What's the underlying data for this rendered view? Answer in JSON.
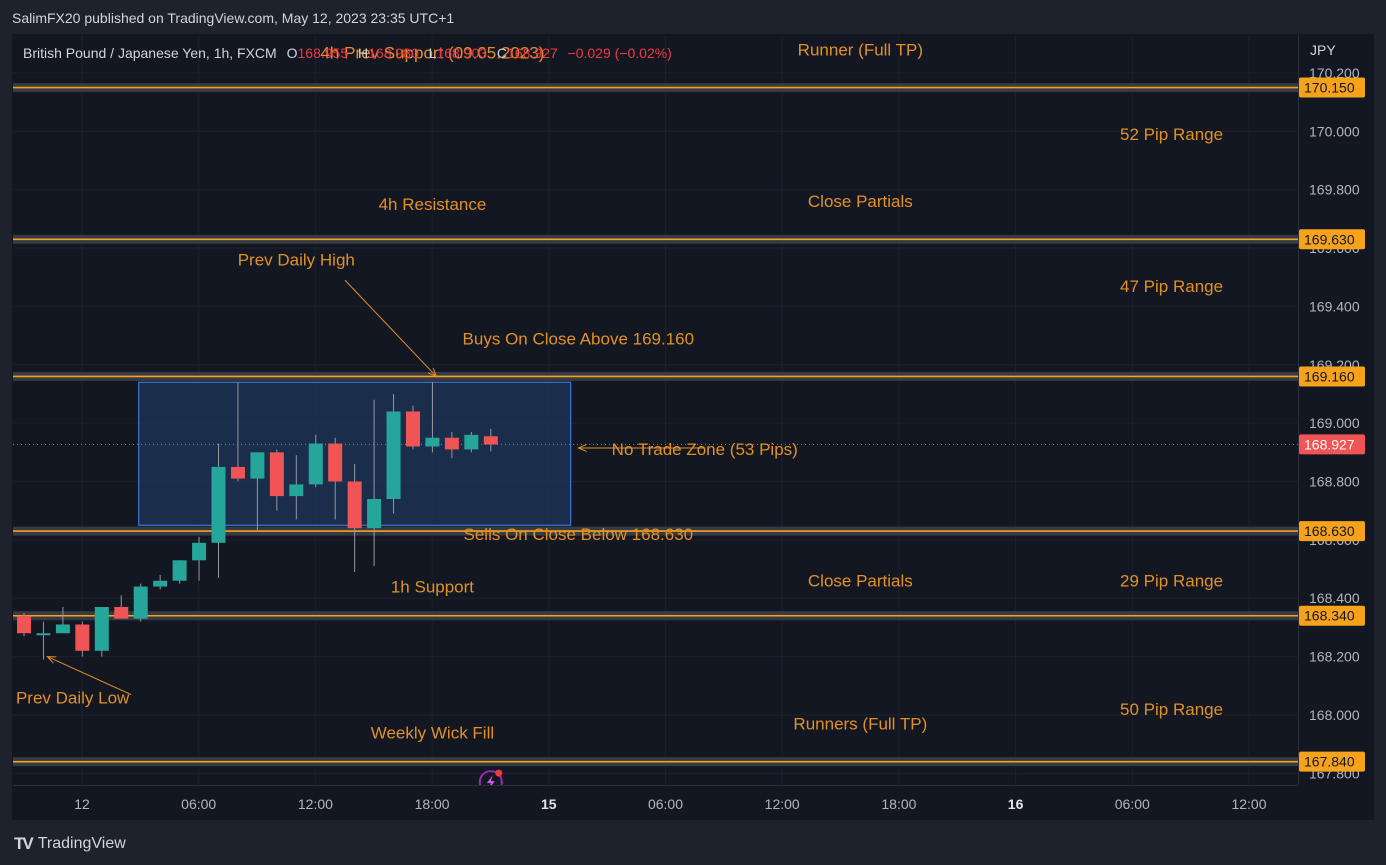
{
  "header": {
    "published": "SalimFX20 published on TradingView.com, May 12, 2023 23:35 UTC+1"
  },
  "legend": {
    "symbol": "British Pound / Japanese Yen, 1h, FXCM",
    "o_label": "O",
    "o_value": "168.955",
    "h_label": "H",
    "h_value": "168.980",
    "l_label": "L",
    "l_value": "168.903",
    "c_label": "C",
    "c_value": "168.927",
    "change": "−0.029 (−0.02%)"
  },
  "footer": {
    "brand": "TradingView"
  },
  "colors": {
    "bull": "#26a69a",
    "bear": "#f05454",
    "annotation": "#e39022",
    "line": "#f7a21b",
    "zone_border": "#3a78d8",
    "zone_fill": "#1e3558"
  },
  "chart_data": {
    "type": "candlestick",
    "currency": "JPY",
    "ylim": [
      167.76,
      170.33
    ],
    "y_ticks": [
      170.2,
      170.0,
      169.8,
      169.6,
      169.4,
      169.2,
      169.0,
      168.8,
      168.6,
      168.4,
      168.2,
      168.0,
      167.8
    ],
    "y_tick_labels": [
      "170.200",
      "170.000",
      "169.800",
      "169.600",
      "169.400",
      "169.200",
      "169.000",
      "168.800",
      "168.600",
      "168.400",
      "168.200",
      "168.000",
      "167.800"
    ],
    "x_ticks": [
      {
        "label": "12",
        "hour": 0,
        "bold": false
      },
      {
        "label": "06:00",
        "hour": 6,
        "bold": false
      },
      {
        "label": "12:00",
        "hour": 12,
        "bold": false
      },
      {
        "label": "18:00",
        "hour": 18,
        "bold": false
      },
      {
        "label": "15",
        "hour": 24,
        "bold": true
      },
      {
        "label": "06:00",
        "hour": 30,
        "bold": false
      },
      {
        "label": "12:00",
        "hour": 36,
        "bold": false
      },
      {
        "label": "18:00",
        "hour": 42,
        "bold": false
      },
      {
        "label": "16",
        "hour": 48,
        "bold": true
      },
      {
        "label": "06:00",
        "hour": 54,
        "bold": false
      },
      {
        "label": "12:00",
        "hour": 60,
        "bold": false
      }
    ],
    "candles": [
      {
        "o": 168.34,
        "h": 168.35,
        "l": 168.27,
        "c": 168.28
      },
      {
        "o": 168.28,
        "h": 168.32,
        "l": 168.19,
        "c": 168.28
      },
      {
        "o": 168.28,
        "h": 168.37,
        "l": 168.28,
        "c": 168.31
      },
      {
        "o": 168.31,
        "h": 168.32,
        "l": 168.2,
        "c": 168.22
      },
      {
        "o": 168.22,
        "h": 168.37,
        "l": 168.2,
        "c": 168.37
      },
      {
        "o": 168.37,
        "h": 168.41,
        "l": 168.33,
        "c": 168.33
      },
      {
        "o": 168.33,
        "h": 168.45,
        "l": 168.32,
        "c": 168.44
      },
      {
        "o": 168.44,
        "h": 168.48,
        "l": 168.43,
        "c": 168.46
      },
      {
        "o": 168.46,
        "h": 168.53,
        "l": 168.45,
        "c": 168.53
      },
      {
        "o": 168.53,
        "h": 168.61,
        "l": 168.46,
        "c": 168.59
      },
      {
        "o": 168.59,
        "h": 168.93,
        "l": 168.47,
        "c": 168.85
      },
      {
        "o": 168.85,
        "h": 169.14,
        "l": 168.8,
        "c": 168.81
      },
      {
        "o": 168.81,
        "h": 168.9,
        "l": 168.63,
        "c": 168.9
      },
      {
        "o": 168.9,
        "h": 168.91,
        "l": 168.7,
        "c": 168.75
      },
      {
        "o": 168.75,
        "h": 168.89,
        "l": 168.67,
        "c": 168.79
      },
      {
        "o": 168.79,
        "h": 168.96,
        "l": 168.78,
        "c": 168.93
      },
      {
        "o": 168.93,
        "h": 168.95,
        "l": 168.67,
        "c": 168.8
      },
      {
        "o": 168.8,
        "h": 168.86,
        "l": 168.49,
        "c": 168.64
      },
      {
        "o": 168.64,
        "h": 169.08,
        "l": 168.51,
        "c": 168.74
      },
      {
        "o": 168.74,
        "h": 169.1,
        "l": 168.69,
        "c": 169.04
      },
      {
        "o": 169.04,
        "h": 169.06,
        "l": 168.91,
        "c": 168.92
      },
      {
        "o": 168.92,
        "h": 169.14,
        "l": 168.9,
        "c": 168.95
      },
      {
        "o": 168.95,
        "h": 168.97,
        "l": 168.88,
        "c": 168.91
      },
      {
        "o": 168.91,
        "h": 168.97,
        "l": 168.9,
        "c": 168.96
      },
      {
        "o": 168.955,
        "h": 168.98,
        "l": 168.903,
        "c": 168.927
      }
    ],
    "levels": [
      {
        "price": 170.15,
        "label": "170.150"
      },
      {
        "price": 169.63,
        "label": "169.630"
      },
      {
        "price": 169.16,
        "label": "169.160"
      },
      {
        "price": 168.63,
        "label": "168.630"
      },
      {
        "price": 168.34,
        "label": "168.340"
      },
      {
        "price": 167.84,
        "label": "167.840"
      }
    ],
    "current_price": {
      "price": 168.927,
      "label": "168.927"
    },
    "no_trade_zone": {
      "top": 169.14,
      "bottom": 168.65,
      "start_bar": 6,
      "end_bar": 28
    },
    "annotations": [
      {
        "text": "4h Prev Support (09.05.2023)",
        "price": 170.25,
        "bar": 21
      },
      {
        "text": "Runner (Full TP)",
        "price": 170.26,
        "bar": 43
      },
      {
        "text": "52 Pip Range",
        "price": 169.97,
        "bar": 59
      },
      {
        "text": "4h Resistance",
        "price": 169.73,
        "bar": 21
      },
      {
        "text": "Close Partials",
        "price": 169.74,
        "bar": 43
      },
      {
        "text": "Prev Daily High",
        "price": 169.54,
        "bar": 14
      },
      {
        "text": "47 Pip Range",
        "price": 169.45,
        "bar": 59
      },
      {
        "text": "Buys On Close Above 169.160",
        "price": 169.27,
        "bar": 28.5
      },
      {
        "text": "No Trade Zone (53 Pips)",
        "price": 168.89,
        "bar": 35
      },
      {
        "text": "Sells On Close Below 168.630",
        "price": 168.6,
        "bar": 28.5
      },
      {
        "text": "29 Pip Range",
        "price": 168.44,
        "bar": 59
      },
      {
        "text": "1h Support",
        "price": 168.42,
        "bar": 21
      },
      {
        "text": "Close Partials",
        "price": 168.44,
        "bar": 43
      },
      {
        "text": "Prev Daily Low",
        "price": 168.04,
        "bar": 2.5
      },
      {
        "text": "50 Pip Range",
        "price": 168.0,
        "bar": 59
      },
      {
        "text": "Weekly Wick Fill",
        "price": 167.92,
        "bar": 21
      },
      {
        "text": "Runners (Full TP)",
        "price": 167.95,
        "bar": 43
      }
    ]
  }
}
